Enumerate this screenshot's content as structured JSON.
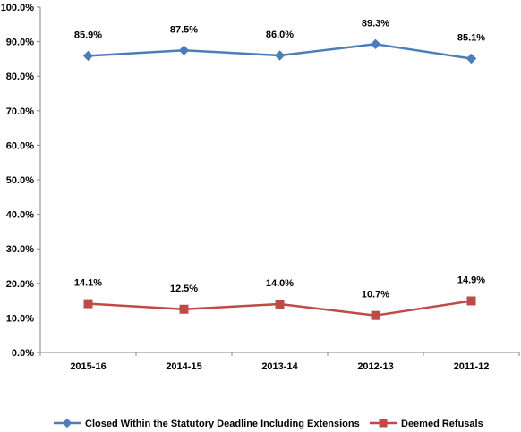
{
  "chart_data": {
    "type": "line",
    "title": "",
    "xlabel": "",
    "ylabel": "",
    "categories": [
      "2015-16",
      "2014-15",
      "2013-14",
      "2012-13",
      "2011-12"
    ],
    "ylim": [
      0,
      100
    ],
    "ytick_values": [
      0,
      10,
      20,
      30,
      40,
      50,
      60,
      70,
      80,
      90,
      100
    ],
    "ytick_labels": [
      "0.0%",
      "10.0%",
      "20.0%",
      "30.0%",
      "40.0%",
      "50.0%",
      "60.0%",
      "70.0%",
      "80.0%",
      "90.0%",
      "100.0%"
    ],
    "grid": false,
    "legend_position": "bottom",
    "series": [
      {
        "name": "Closed Within the Statutory Deadline Including Extensions",
        "values": [
          85.9,
          87.5,
          86.0,
          89.3,
          85.1
        ],
        "labels": [
          "85.9%",
          "87.5%",
          "86.0%",
          "89.3%",
          "85.1%"
        ],
        "color": "#4a7ebb",
        "marker": "diamond"
      },
      {
        "name": "Deemed Refusals",
        "values": [
          14.1,
          12.5,
          14.0,
          10.7,
          14.9
        ],
        "labels": [
          "14.1%",
          "12.5%",
          "14.0%",
          "10.7%",
          "14.9%"
        ],
        "color": "#be4b48",
        "marker": "square"
      }
    ]
  }
}
